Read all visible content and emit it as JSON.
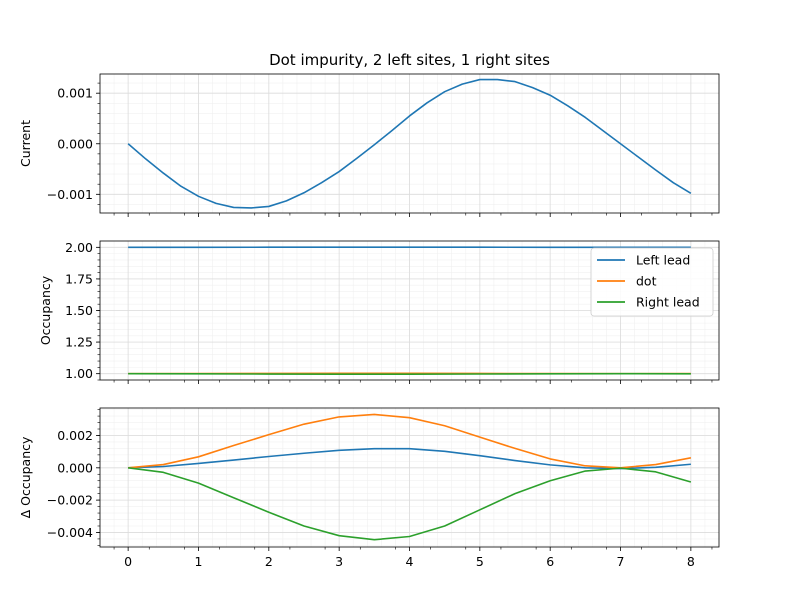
{
  "chart_data": [
    {
      "type": "line",
      "title": "Dot impurity, 2 left sites, 1 right sites",
      "xlabel": "",
      "ylabel": "Current",
      "xlim": [
        -0.4,
        8.4
      ],
      "ylim": [
        -0.00137,
        0.00138
      ],
      "xticks": [
        "0",
        "1",
        "2",
        "3",
        "4",
        "5",
        "6",
        "7",
        "8"
      ],
      "yticks": [
        {
          "value": 0.001,
          "label": "0.001"
        },
        {
          "value": 0.0,
          "label": "0.000"
        },
        {
          "value": -0.001,
          "label": "−0.001"
        }
      ],
      "grid": true,
      "series": [
        {
          "color": "#1f77b4",
          "x": [
            0,
            0.25,
            0.5,
            0.75,
            1,
            1.25,
            1.5,
            1.75,
            2,
            2.25,
            2.5,
            2.75,
            3,
            3.25,
            3.5,
            3.75,
            4,
            4.25,
            4.5,
            4.75,
            5,
            5.25,
            5.5,
            5.75,
            6,
            6.25,
            6.5,
            6.75,
            7,
            7.25,
            7.5,
            7.75,
            8
          ],
          "values": [
            0.0,
            -0.0003,
            -0.00058,
            -0.00084,
            -0.00104,
            -0.00118,
            -0.00126,
            -0.00127,
            -0.00124,
            -0.00113,
            -0.00097,
            -0.00077,
            -0.00055,
            -0.00029,
            -2e-05,
            0.00026,
            0.00055,
            0.00081,
            0.00103,
            0.00118,
            0.00127,
            0.00127,
            0.00123,
            0.00111,
            0.00096,
            0.00075,
            0.00052,
            0.00026,
            0.0,
            -0.00026,
            -0.00052,
            -0.00077,
            -0.00098
          ]
        }
      ]
    },
    {
      "type": "line",
      "xlabel": "",
      "ylabel": "Occupancy",
      "xlim": [
        -0.4,
        8.4
      ],
      "ylim": [
        0.95,
        2.05
      ],
      "xticks": [
        "0",
        "1",
        "2",
        "3",
        "4",
        "5",
        "6",
        "7",
        "8"
      ],
      "yticks": [
        {
          "value": 2.0,
          "label": "2.00"
        },
        {
          "value": 1.75,
          "label": "1.75"
        },
        {
          "value": 1.5,
          "label": "1.50"
        },
        {
          "value": 1.25,
          "label": "1.25"
        },
        {
          "value": 1.0,
          "label": "1.00"
        }
      ],
      "grid": true,
      "legend": "top-right",
      "series": [
        {
          "name": "Left lead",
          "color": "#1f77b4",
          "x": [
            0,
            1,
            2,
            3,
            4,
            5,
            6,
            7,
            8
          ],
          "values": [
            2.0,
            2.0003,
            2.0007,
            2.0011,
            2.0012,
            2.0007,
            2.0002,
            2.0,
            2.0002
          ]
        },
        {
          "name": "dot",
          "color": "#ff7f0e",
          "x": [
            0,
            1,
            2,
            3,
            4,
            5,
            6,
            7,
            8
          ],
          "values": [
            1.0,
            1.0007,
            1.002,
            1.0031,
            1.0031,
            1.002,
            1.0006,
            1.0,
            1.0006
          ]
        },
        {
          "name": "Right lead",
          "color": "#2ca02c",
          "x": [
            0,
            1,
            2,
            3,
            4,
            5,
            6,
            7,
            8
          ],
          "values": [
            1.0,
            0.999,
            0.9972,
            0.9958,
            0.9957,
            0.9974,
            0.9991,
            0.9999,
            0.9992
          ]
        }
      ]
    },
    {
      "type": "line",
      "xlabel": "",
      "ylabel": "Δ Occupancy",
      "xlim": [
        -0.4,
        8.4
      ],
      "ylim": [
        -0.0049,
        0.0037
      ],
      "xticks": [
        "0",
        "1",
        "2",
        "3",
        "4",
        "5",
        "6",
        "7",
        "8"
      ],
      "yticks": [
        {
          "value": 0.002,
          "label": "0.002"
        },
        {
          "value": 0.0,
          "label": "0.000"
        },
        {
          "value": -0.002,
          "label": "−0.002"
        },
        {
          "value": -0.004,
          "label": "−0.004"
        }
      ],
      "grid": true,
      "series": [
        {
          "color": "#1f77b4",
          "x": [
            0,
            0.5,
            1,
            1.5,
            2,
            2.5,
            3,
            3.5,
            4,
            4.5,
            5,
            5.5,
            6,
            6.5,
            7,
            7.5,
            8
          ],
          "values": [
            0.0,
            8e-05,
            0.00027,
            0.00048,
            0.0007,
            0.0009,
            0.00108,
            0.00118,
            0.00118,
            0.00102,
            0.00075,
            0.00045,
            0.00018,
            0.0,
            -5e-05,
            3e-05,
            0.00022
          ]
        },
        {
          "color": "#ff7f0e",
          "x": [
            0,
            0.5,
            1,
            1.5,
            2,
            2.5,
            3,
            3.5,
            4,
            4.5,
            5,
            5.5,
            6,
            6.5,
            7,
            7.5,
            8
          ],
          "values": [
            0.0,
            0.0002,
            0.00068,
            0.00138,
            0.00205,
            0.0027,
            0.00315,
            0.0033,
            0.0031,
            0.0026,
            0.0019,
            0.0012,
            0.00055,
            0.00012,
            0.0,
            0.0002,
            0.00062
          ]
        },
        {
          "color": "#2ca02c",
          "x": [
            0,
            0.5,
            1,
            1.5,
            2,
            2.5,
            3,
            3.5,
            4,
            4.5,
            5,
            5.5,
            6,
            6.5,
            7,
            7.5,
            8
          ],
          "values": [
            0.0,
            -0.00028,
            -0.00095,
            -0.00185,
            -0.00275,
            -0.0036,
            -0.0042,
            -0.00445,
            -0.00425,
            -0.0036,
            -0.0026,
            -0.0016,
            -0.0008,
            -0.0002,
            -2e-05,
            -0.00025,
            -0.00088
          ]
        }
      ]
    }
  ]
}
